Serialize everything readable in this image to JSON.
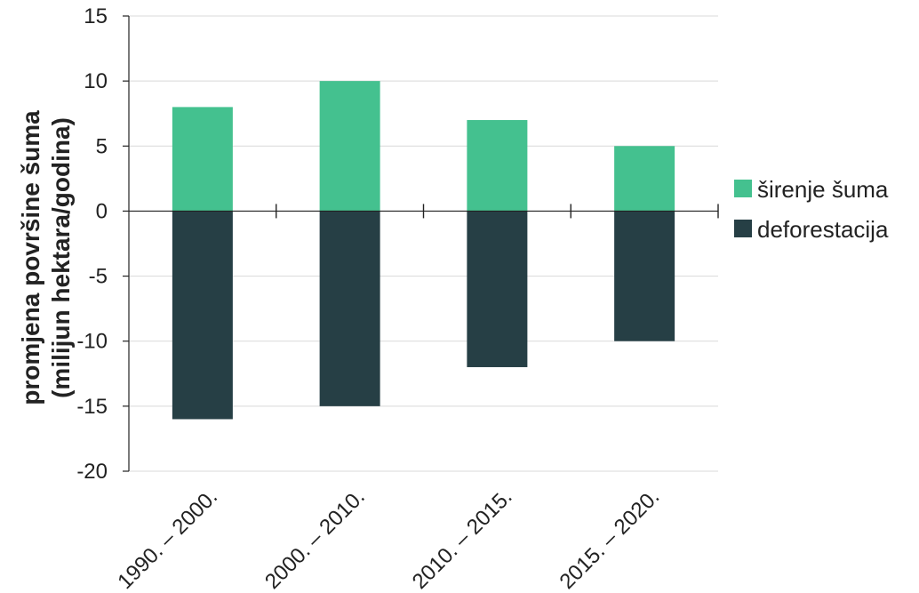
{
  "chart_data": {
    "type": "bar",
    "stacked": true,
    "categories": [
      "1990. – 2000.",
      "2000. – 2010.",
      "2010. – 2015.",
      "2015. – 2020."
    ],
    "series": [
      {
        "name": "širenje šuma",
        "values": [
          8,
          10,
          7,
          5
        ],
        "color": "#44c18f"
      },
      {
        "name": "deforestacija",
        "values": [
          -16,
          -15,
          -12,
          -10
        ],
        "color": "#263f45"
      }
    ],
    "ylabel_line1": "promjena površine šuma",
    "ylabel_line2": "(milijun hektara/godina)",
    "ylim": [
      -20,
      15
    ],
    "yticks": [
      15,
      10,
      5,
      0,
      -5,
      -10,
      -15,
      -20
    ],
    "grid": true,
    "legend": "right",
    "gridColor": "#d9d9d9",
    "axisColor": "#222222"
  }
}
